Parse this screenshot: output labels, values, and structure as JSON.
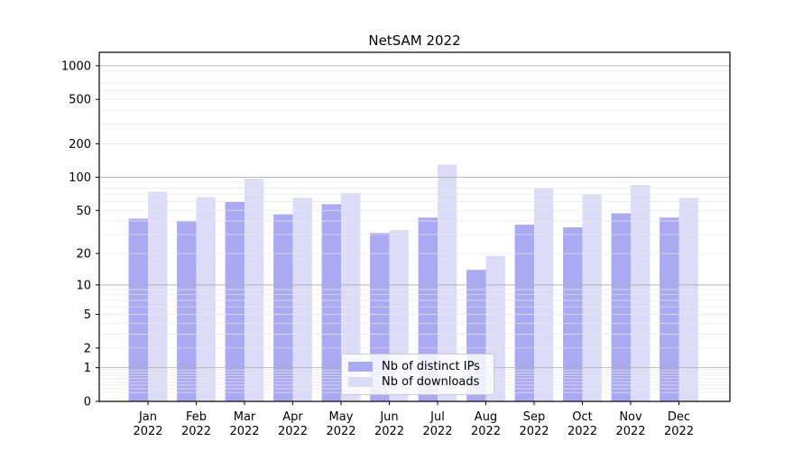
{
  "chart_data": {
    "type": "bar",
    "title": "NetSAM 2022",
    "categories": [
      "Jan",
      "Feb",
      "Mar",
      "Apr",
      "May",
      "Jun",
      "Jul",
      "Aug",
      "Sep",
      "Oct",
      "Nov",
      "Dec"
    ],
    "category_year": "2022",
    "series": [
      {
        "name": "Nb of distinct IPs",
        "color": "#aaaaf2",
        "values": [
          42,
          40,
          60,
          46,
          57,
          31,
          43,
          14,
          37,
          35,
          47,
          43
        ]
      },
      {
        "name": "Nb of downloads",
        "color": "#dcdcf9",
        "values": [
          74,
          66,
          97,
          65,
          72,
          33,
          130,
          19,
          79,
          70,
          85,
          65
        ]
      }
    ],
    "xlabel": "",
    "ylabel": "",
    "yscale": "log1p",
    "ylim": [
      0,
      1320
    ],
    "ytick_values": [
      0,
      1,
      2,
      5,
      10,
      20,
      50,
      100,
      200,
      500,
      1000
    ],
    "ytick_labels": [
      "0",
      "1",
      "2",
      "5",
      "10",
      "20",
      "50",
      "100",
      "200",
      "500",
      "1000"
    ],
    "grid": true,
    "legend_position": "lower center inside",
    "colors": {
      "background": "#ffffff",
      "major_grid": "#b0b0b0",
      "minor_grid": "#e7e7e7",
      "spine": "#000000",
      "text": "#000000"
    }
  }
}
